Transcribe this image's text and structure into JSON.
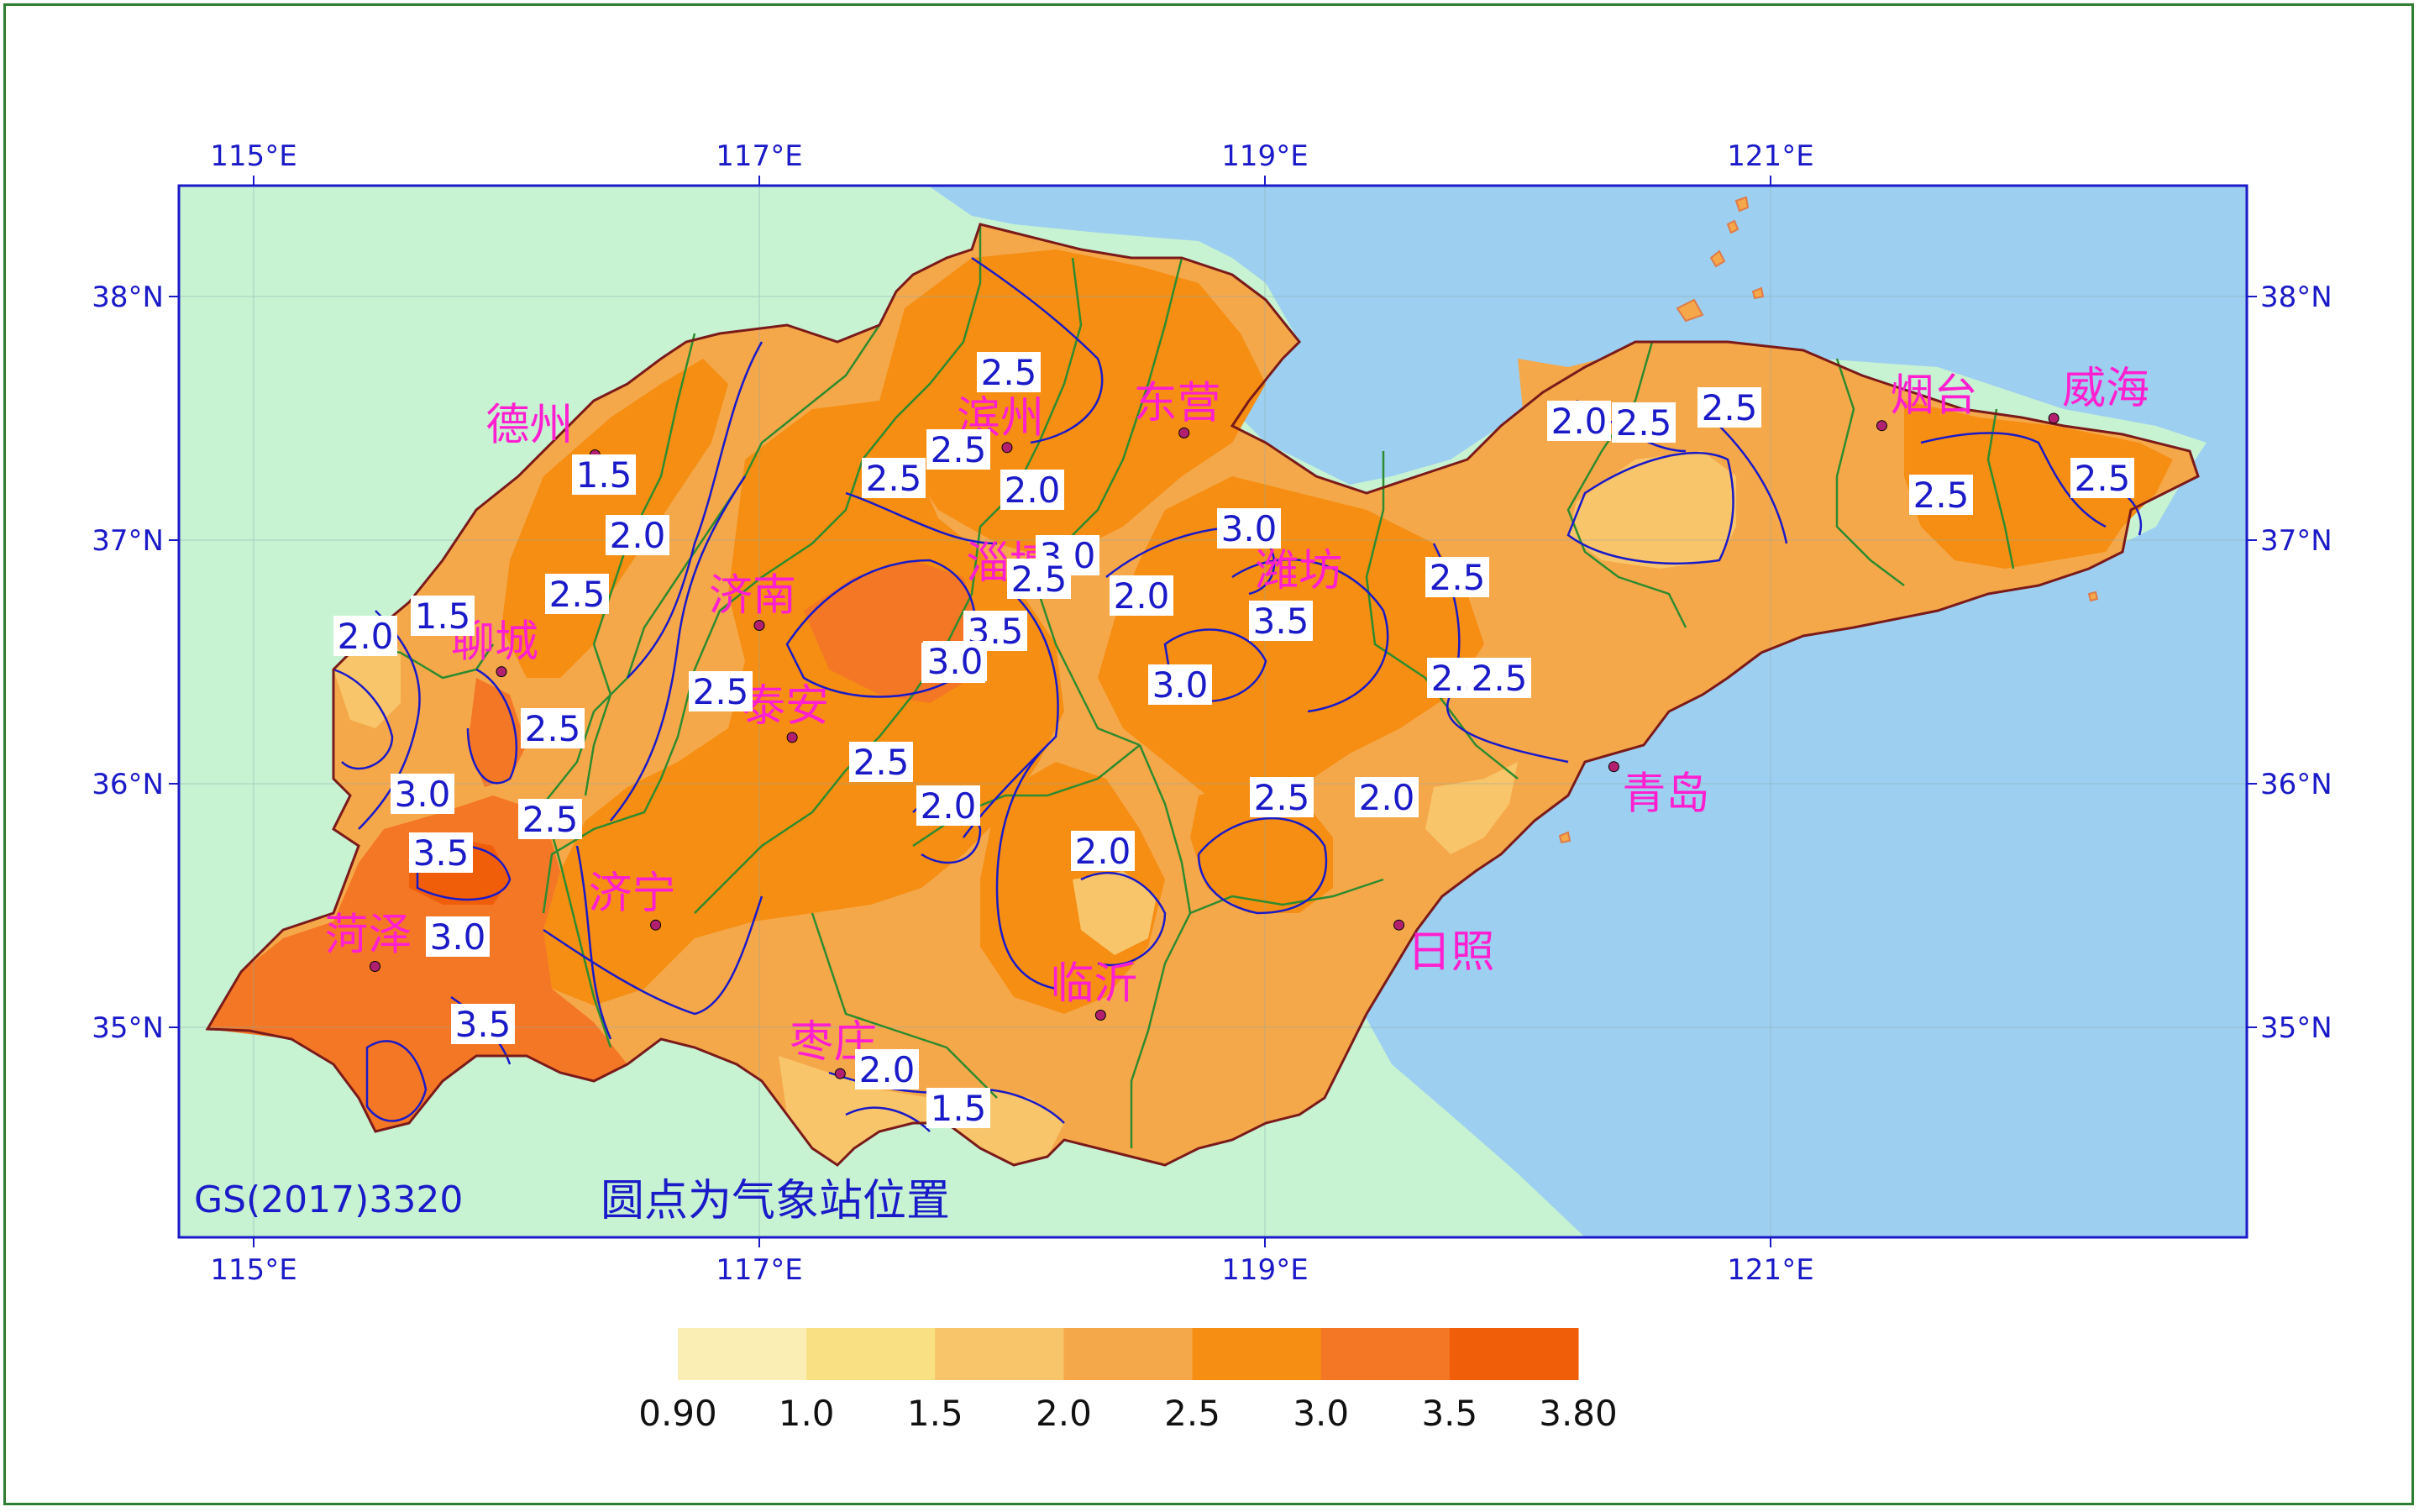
{
  "map": {
    "credit": "GS(2017)3320",
    "note": "圆点为气象站位置",
    "colors": {
      "land_outside": "#c7f3d3",
      "sea": "#9dcff0",
      "frame": "#1a1ac8",
      "province_border": "#7a1a1a",
      "city_border": "#2e8b2e",
      "isoline": "#1a1ac8",
      "city_label": "#ff1fd0",
      "station_dot": "#b0206f"
    },
    "lon_ticks": [
      "115°E",
      "117°E",
      "119°E",
      "121°E"
    ],
    "lat_ticks": [
      "38°N",
      "37°N",
      "36°N",
      "35°N"
    ],
    "cities": [
      {
        "name": "德州",
        "lon": 116.35,
        "lat": 37.35
      },
      {
        "name": "滨州",
        "lon": 117.98,
        "lat": 37.38
      },
      {
        "name": "东营",
        "lon": 118.68,
        "lat": 37.44
      },
      {
        "name": "烟台",
        "lon": 121.44,
        "lat": 37.47
      },
      {
        "name": "威海",
        "lon": 122.12,
        "lat": 37.5
      },
      {
        "name": "淄博",
        "lon": 118.05,
        "lat": 36.81
      },
      {
        "name": "潍坊",
        "lon": 119.16,
        "lat": 36.71
      },
      {
        "name": "聊城",
        "lon": 115.98,
        "lat": 36.46
      },
      {
        "name": "济南",
        "lon": 117.0,
        "lat": 36.65
      },
      {
        "name": "泰安",
        "lon": 117.13,
        "lat": 36.19
      },
      {
        "name": "青岛",
        "lon": 120.38,
        "lat": 36.07
      },
      {
        "name": "济宁",
        "lon": 116.59,
        "lat": 35.42
      },
      {
        "name": "菏泽",
        "lon": 115.48,
        "lat": 35.25
      },
      {
        "name": "临沂",
        "lon": 118.35,
        "lat": 35.05
      },
      {
        "name": "日照",
        "lon": 119.53,
        "lat": 35.42
      },
      {
        "name": "枣庄",
        "lon": 117.32,
        "lat": 34.81
      }
    ],
    "contour_labels": [
      "2.5",
      "2.5",
      "2.0",
      "2.5",
      "1.5",
      "2.0",
      "2.5",
      "3.0",
      "2.5",
      "2.0",
      "1.5",
      "2.0",
      "2.5",
      "3.5",
      "3.0",
      "3.0",
      "2.5",
      "2.5",
      "3.0",
      "3.5",
      "3.0",
      "3.0",
      "2.5",
      "2.5",
      "2.0",
      "2.0",
      "2.0",
      "2.5",
      "2.0",
      "3.5",
      "3.0",
      "3.5",
      "2.0",
      "1.5",
      "2.5",
      "2.5",
      "2.5",
      "2.5",
      "2.5",
      "2.5"
    ]
  },
  "legend": {
    "title": "",
    "tick_labels": [
      "0.90",
      "1.0",
      "1.5",
      "2.0",
      "2.5",
      "3.0",
      "3.5",
      "3.80"
    ],
    "colors": [
      "#fbeeb4",
      "#f9e083",
      "#f8c56a",
      "#f5a84a",
      "#f58e12",
      "#f47725",
      "#f05e0a"
    ]
  }
}
